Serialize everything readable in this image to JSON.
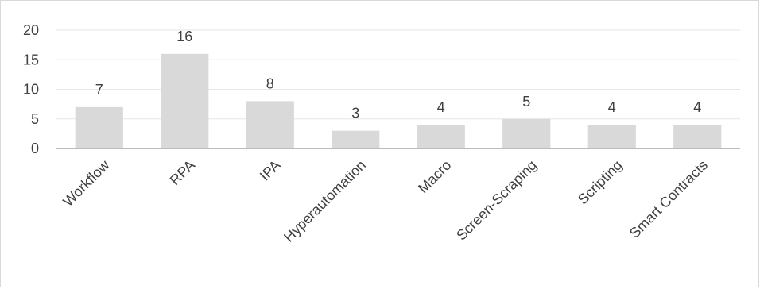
{
  "chart_data": {
    "type": "bar",
    "categories": [
      "Workflow",
      "RPA",
      "IPA",
      "Hyperautomation",
      "Macro",
      "Screen-Scraping",
      "Scripting",
      "Smart Contracts"
    ],
    "values": [
      7,
      16,
      8,
      3,
      4,
      5,
      4,
      4
    ],
    "ylim": [
      0,
      20
    ],
    "yticks": [
      0,
      5,
      10,
      15,
      20
    ],
    "grid": true,
    "legend": "none",
    "data_labels": true,
    "bar_color": "#d9d9d9",
    "gridline_color": "#e6e6e6",
    "axis_color": "#a6a6a6"
  }
}
